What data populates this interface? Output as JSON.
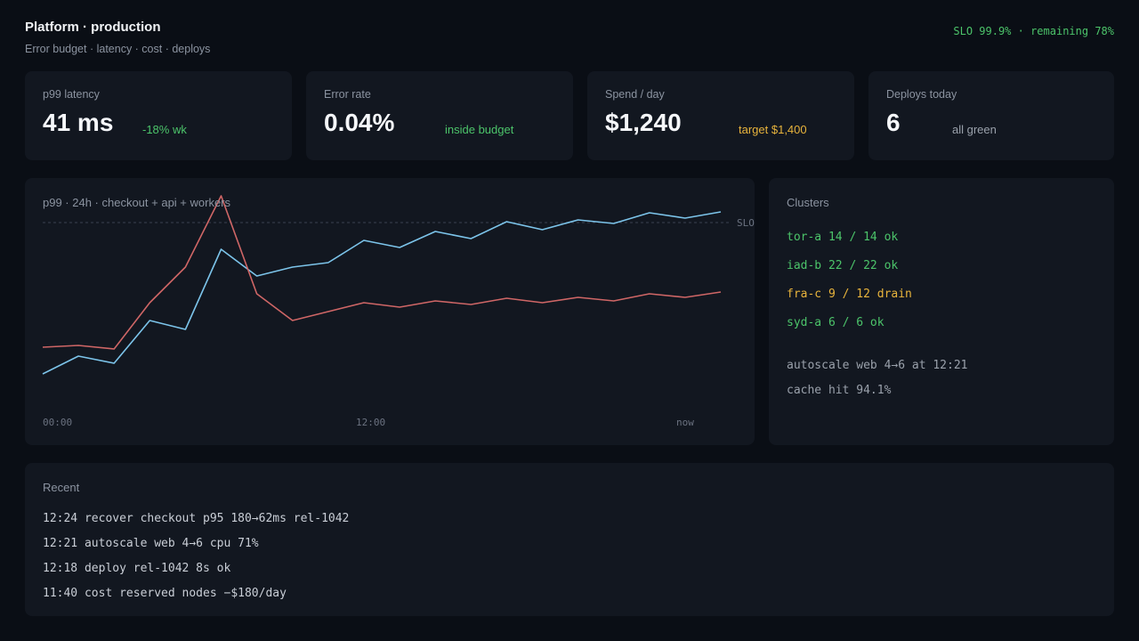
{
  "header": {
    "title": "Platform · production",
    "subtitle": "Error budget · latency · cost · deploys",
    "slo_status": "SLO 99.9% · remaining 78%"
  },
  "kpis": [
    {
      "label": "p99 latency",
      "value": "41 ms",
      "note": "-18% wk",
      "note_color": "#4cc46a"
    },
    {
      "label": "Error rate",
      "value": "0.04%",
      "note": "inside budget",
      "note_color": "#4cc46a"
    },
    {
      "label": "Spend / day",
      "value": "$1,240",
      "note": "target $1,400",
      "note_color": "#e8b43c"
    },
    {
      "label": "Deploys today",
      "value": "6",
      "note": "all green",
      "note_color": "#9aa1ab"
    }
  ],
  "chart_data": {
    "type": "line",
    "title": "p99 · 24h · checkout + api + workers",
    "x_tick_labels": [
      "00:00",
      "12:00",
      "now"
    ],
    "reference_line": {
      "label": "SLO"
    },
    "series": [
      {
        "color": "#7cc4ea",
        "values": [
          0,
          20,
          12,
          60,
          50,
          140,
          110,
          120,
          125,
          150,
          142,
          160,
          152,
          171,
          162,
          173,
          169,
          181,
          175,
          182
        ]
      },
      {
        "color": "#cf6666",
        "values": [
          30,
          32,
          28,
          80,
          120,
          200,
          90,
          60,
          70,
          80,
          75,
          82,
          78,
          85,
          80,
          86,
          82,
          90,
          86,
          92
        ]
      }
    ],
    "ylim": [
      0,
      200
    ],
    "grid": false
  },
  "colors": {
    "ok": "#4cc46a",
    "warn": "#e8b43c",
    "muted": "#9aa1ab"
  },
  "clusters": {
    "heading": "Clusters",
    "items": [
      {
        "text": "tor-a 14 / 14 ok",
        "status": "ok"
      },
      {
        "text": "iad-b 22 / 22 ok",
        "status": "ok"
      },
      {
        "text": "fra-c 9 / 12 drain",
        "status": "warn"
      },
      {
        "text": "syd-a 6 / 6 ok",
        "status": "ok"
      }
    ],
    "notes": [
      "autoscale web 4→6 at 12:21",
      "cache hit 94.1%"
    ]
  },
  "recent": {
    "heading": "Recent",
    "items": [
      "12:24 recover checkout p95 180→62ms rel-1042",
      "12:21 autoscale web 4→6 cpu 71%",
      "12:18 deploy rel-1042 8s ok",
      "11:40 cost reserved nodes −$180/day"
    ]
  }
}
